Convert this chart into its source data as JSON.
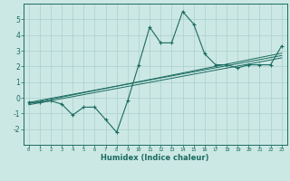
{
  "xlabel": "Humidex (Indice chaleur)",
  "background_color": "#cce8e4",
  "grid_color": "#aacfcb",
  "line_color": "#1a6b60",
  "x_data": [
    0,
    1,
    2,
    3,
    4,
    5,
    6,
    7,
    8,
    9,
    10,
    11,
    12,
    13,
    14,
    15,
    16,
    17,
    18,
    19,
    20,
    21,
    22,
    23
  ],
  "y_main": [
    -0.3,
    -0.3,
    -0.2,
    -0.4,
    -1.1,
    -0.6,
    -0.6,
    -1.4,
    -2.2,
    -0.2,
    2.1,
    4.5,
    3.5,
    3.5,
    5.5,
    4.7,
    2.8,
    2.1,
    2.1,
    1.9,
    2.1,
    2.1,
    2.1,
    3.3
  ],
  "y_reg1": [
    -0.45,
    -0.32,
    -0.19,
    -0.06,
    0.07,
    0.2,
    0.33,
    0.46,
    0.59,
    0.72,
    0.85,
    0.98,
    1.11,
    1.24,
    1.37,
    1.5,
    1.63,
    1.76,
    1.89,
    2.02,
    2.15,
    2.28,
    2.41,
    2.54
  ],
  "y_reg2": [
    -0.38,
    -0.24,
    -0.1,
    0.04,
    0.18,
    0.32,
    0.46,
    0.6,
    0.74,
    0.88,
    1.02,
    1.16,
    1.3,
    1.44,
    1.58,
    1.72,
    1.86,
    2.0,
    2.14,
    2.28,
    2.42,
    2.56,
    2.7,
    2.84
  ],
  "y_reg3": [
    -0.3,
    -0.17,
    -0.04,
    0.09,
    0.22,
    0.35,
    0.48,
    0.61,
    0.74,
    0.87,
    1.0,
    1.13,
    1.26,
    1.39,
    1.52,
    1.65,
    1.78,
    1.91,
    2.04,
    2.17,
    2.3,
    2.43,
    2.56,
    2.69
  ],
  "ylim": [
    -3,
    6
  ],
  "xlim": [
    -0.5,
    23.5
  ],
  "yticks": [
    -2,
    -1,
    0,
    1,
    2,
    3,
    4,
    5
  ],
  "xticks": [
    0,
    1,
    2,
    3,
    4,
    5,
    6,
    7,
    8,
    9,
    10,
    11,
    12,
    13,
    14,
    15,
    16,
    17,
    18,
    19,
    20,
    21,
    22,
    23
  ]
}
